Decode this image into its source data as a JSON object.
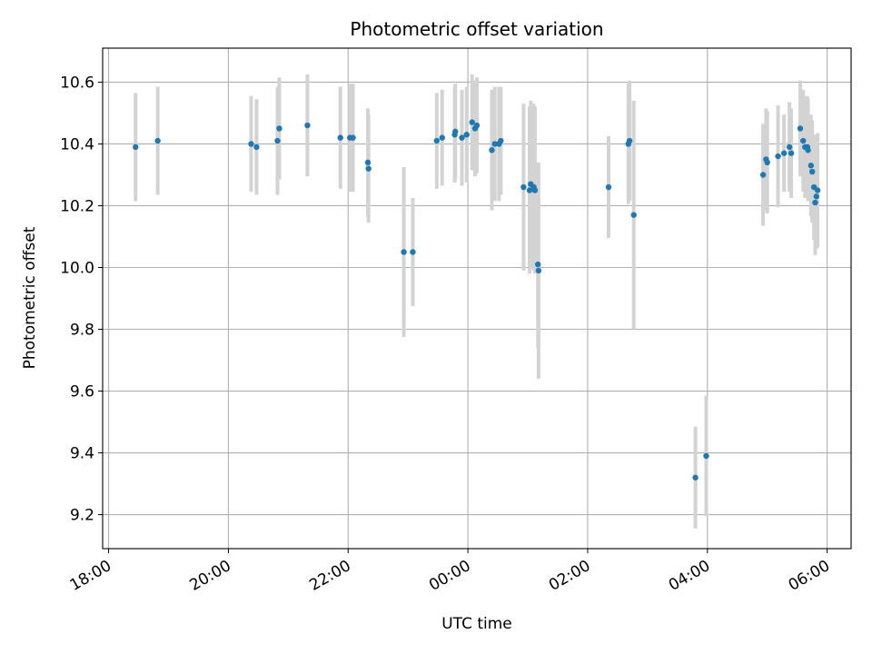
{
  "chart_data": {
    "type": "scatter",
    "title": "Photometric offset variation",
    "xlabel": "UTC time",
    "ylabel": "Photometric offset",
    "x_unit": "UTC time (hours past midnight, negative = previous evening)",
    "xlim_hours": [
      -6.1,
      6.4
    ],
    "ylim": [
      9.09,
      10.71
    ],
    "x_ticks": [
      {
        "hour": -6,
        "label": "18:00"
      },
      {
        "hour": -4,
        "label": "20:00"
      },
      {
        "hour": -2,
        "label": "22:00"
      },
      {
        "hour": 0,
        "label": "00:00"
      },
      {
        "hour": 2,
        "label": "02:00"
      },
      {
        "hour": 4,
        "label": "04:00"
      },
      {
        "hour": 6,
        "label": "06:00"
      }
    ],
    "y_ticks": [
      9.2,
      9.4,
      9.6,
      9.8,
      10.0,
      10.2,
      10.4,
      10.6
    ],
    "grid": true,
    "colors": {
      "point": "#1f77b4",
      "error_bar": "#d3d3d3"
    },
    "points": [
      {
        "x": -5.55,
        "y": 10.39,
        "err": 0.175
      },
      {
        "x": -5.18,
        "y": 10.41,
        "err": 0.175
      },
      {
        "x": -3.62,
        "y": 10.4,
        "err": 0.155
      },
      {
        "x": -3.53,
        "y": 10.39,
        "err": 0.155
      },
      {
        "x": -3.18,
        "y": 10.41,
        "err": 0.175
      },
      {
        "x": -3.15,
        "y": 10.45,
        "err": 0.165
      },
      {
        "x": -2.68,
        "y": 10.46,
        "err": 0.165
      },
      {
        "x": -2.13,
        "y": 10.42,
        "err": 0.165
      },
      {
        "x": -1.97,
        "y": 10.42,
        "err": 0.175
      },
      {
        "x": -1.92,
        "y": 10.42,
        "err": 0.175
      },
      {
        "x": -1.67,
        "y": 10.34,
        "err": 0.175
      },
      {
        "x": -1.66,
        "y": 10.32,
        "err": 0.175
      },
      {
        "x": -1.07,
        "y": 10.05,
        "err": 0.275
      },
      {
        "x": -0.92,
        "y": 10.05,
        "err": 0.175
      },
      {
        "x": -0.52,
        "y": 10.41,
        "err": 0.155
      },
      {
        "x": -0.43,
        "y": 10.42,
        "err": 0.155
      },
      {
        "x": -0.22,
        "y": 10.43,
        "err": 0.155
      },
      {
        "x": -0.21,
        "y": 10.44,
        "err": 0.155
      },
      {
        "x": -0.1,
        "y": 10.42,
        "err": 0.155
      },
      {
        "x": -0.02,
        "y": 10.43,
        "err": 0.155
      },
      {
        "x": 0.07,
        "y": 10.47,
        "err": 0.155
      },
      {
        "x": 0.12,
        "y": 10.45,
        "err": 0.155
      },
      {
        "x": 0.15,
        "y": 10.46,
        "err": 0.155
      },
      {
        "x": 0.4,
        "y": 10.38,
        "err": 0.195
      },
      {
        "x": 0.45,
        "y": 10.4,
        "err": 0.185
      },
      {
        "x": 0.52,
        "y": 10.4,
        "err": 0.185
      },
      {
        "x": 0.55,
        "y": 10.41,
        "err": 0.175
      },
      {
        "x": 0.93,
        "y": 10.26,
        "err": 0.27
      },
      {
        "x": 1.03,
        "y": 10.25,
        "err": 0.27
      },
      {
        "x": 1.05,
        "y": 10.27,
        "err": 0.27
      },
      {
        "x": 1.1,
        "y": 10.26,
        "err": 0.27
      },
      {
        "x": 1.12,
        "y": 10.25,
        "err": 0.27
      },
      {
        "x": 1.17,
        "y": 10.01,
        "err": 0.27
      },
      {
        "x": 1.18,
        "y": 9.99,
        "err": 0.35
      },
      {
        "x": 2.35,
        "y": 10.26,
        "err": 0.165
      },
      {
        "x": 2.68,
        "y": 10.4,
        "err": 0.195
      },
      {
        "x": 2.7,
        "y": 10.41,
        "err": 0.195
      },
      {
        "x": 2.77,
        "y": 10.17,
        "err": 0.37
      },
      {
        "x": 3.8,
        "y": 9.32,
        "err": 0.165
      },
      {
        "x": 3.98,
        "y": 9.39,
        "err": 0.195
      },
      {
        "x": 4.93,
        "y": 10.3,
        "err": 0.165
      },
      {
        "x": 4.98,
        "y": 10.35,
        "err": 0.165
      },
      {
        "x": 5.0,
        "y": 10.34,
        "err": 0.165
      },
      {
        "x": 5.18,
        "y": 10.36,
        "err": 0.165
      },
      {
        "x": 5.28,
        "y": 10.37,
        "err": 0.125
      },
      {
        "x": 5.37,
        "y": 10.39,
        "err": 0.145
      },
      {
        "x": 5.4,
        "y": 10.37,
        "err": 0.145
      },
      {
        "x": 5.55,
        "y": 10.45,
        "err": 0.155
      },
      {
        "x": 5.6,
        "y": 10.41,
        "err": 0.165
      },
      {
        "x": 5.63,
        "y": 10.39,
        "err": 0.165
      },
      {
        "x": 5.67,
        "y": 10.39,
        "err": 0.165
      },
      {
        "x": 5.68,
        "y": 10.38,
        "err": 0.165
      },
      {
        "x": 5.73,
        "y": 10.33,
        "err": 0.165
      },
      {
        "x": 5.75,
        "y": 10.31,
        "err": 0.165
      },
      {
        "x": 5.78,
        "y": 10.26,
        "err": 0.17
      },
      {
        "x": 5.8,
        "y": 10.21,
        "err": 0.17
      },
      {
        "x": 5.82,
        "y": 10.23,
        "err": 0.17
      },
      {
        "x": 5.84,
        "y": 10.25,
        "err": 0.185
      }
    ]
  }
}
